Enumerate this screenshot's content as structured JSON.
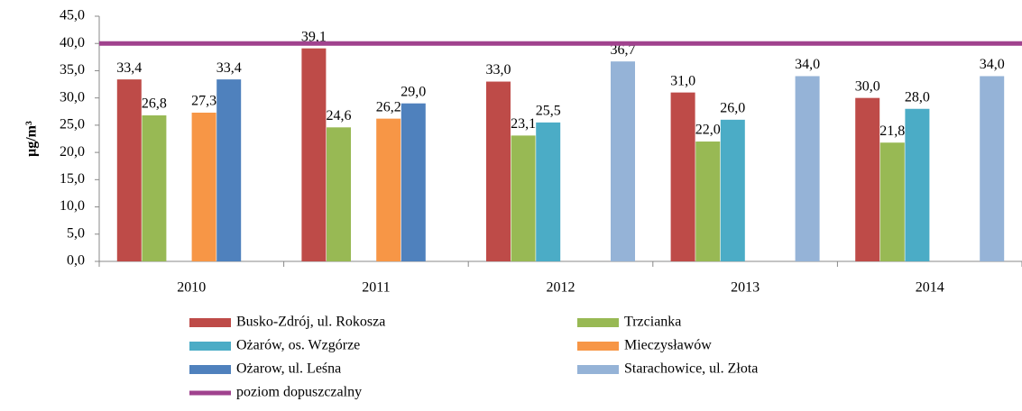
{
  "chart_data": {
    "type": "bar",
    "y_label": "μg/m³",
    "categories": [
      "2010",
      "2011",
      "2012",
      "2013",
      "2014"
    ],
    "series": [
      {
        "name": "Busko-Zdrój, ul. Rokosza",
        "color": "#be4b48",
        "values": [
          33.4,
          39.1,
          33.0,
          31.0,
          30.0
        ],
        "value_labels": [
          "33,4",
          "39,1",
          "33,0",
          "31,0",
          "30,0"
        ]
      },
      {
        "name": "Trzcianka",
        "color": "#98b954",
        "values": [
          26.8,
          24.6,
          23.1,
          22.0,
          21.8
        ],
        "value_labels": [
          "26,8",
          "24,6",
          "23,1",
          "22,0",
          "21,8"
        ]
      },
      {
        "name": "Ożarów, os. Wzgórze",
        "color": "#4bacc6",
        "values": [
          null,
          null,
          25.5,
          26.0,
          28.0
        ],
        "value_labels": [
          null,
          null,
          "25,5",
          "26,0",
          "28,0"
        ]
      },
      {
        "name": "Mieczysławów",
        "color": "#f79646",
        "values": [
          27.3,
          26.2,
          null,
          null,
          null
        ],
        "value_labels": [
          "27,3",
          "26,2",
          null,
          null,
          null
        ]
      },
      {
        "name": "Ożarow, ul. Leśna",
        "color": "#4f81bd",
        "values": [
          33.4,
          29.0,
          null,
          null,
          null
        ],
        "value_labels": [
          "33,4",
          "29,0",
          null,
          null,
          null
        ]
      },
      {
        "name": "Starachowice, ul. Złota",
        "color": "#95b3d7",
        "values": [
          null,
          null,
          36.7,
          34.0,
          34.0
        ],
        "value_labels": [
          null,
          null,
          "36,7",
          "34,0",
          "34,0"
        ]
      }
    ],
    "limit": {
      "name": "poziom dopuszczalny",
      "value": 40,
      "color": "#a0428e"
    },
    "ylim": [
      0,
      45
    ],
    "yticks": [
      {
        "value": 0,
        "label": "0,0"
      },
      {
        "value": 5,
        "label": "5,0"
      },
      {
        "value": 10,
        "label": "10,0"
      },
      {
        "value": 15,
        "label": "15,0"
      },
      {
        "value": 20,
        "label": "20,0"
      },
      {
        "value": 25,
        "label": "25,0"
      },
      {
        "value": 30,
        "label": "30,0"
      },
      {
        "value": 35,
        "label": "35,0"
      },
      {
        "value": 40,
        "label": "40,0"
      },
      {
        "value": 45,
        "label": "45,0"
      }
    ],
    "grid": false
  }
}
